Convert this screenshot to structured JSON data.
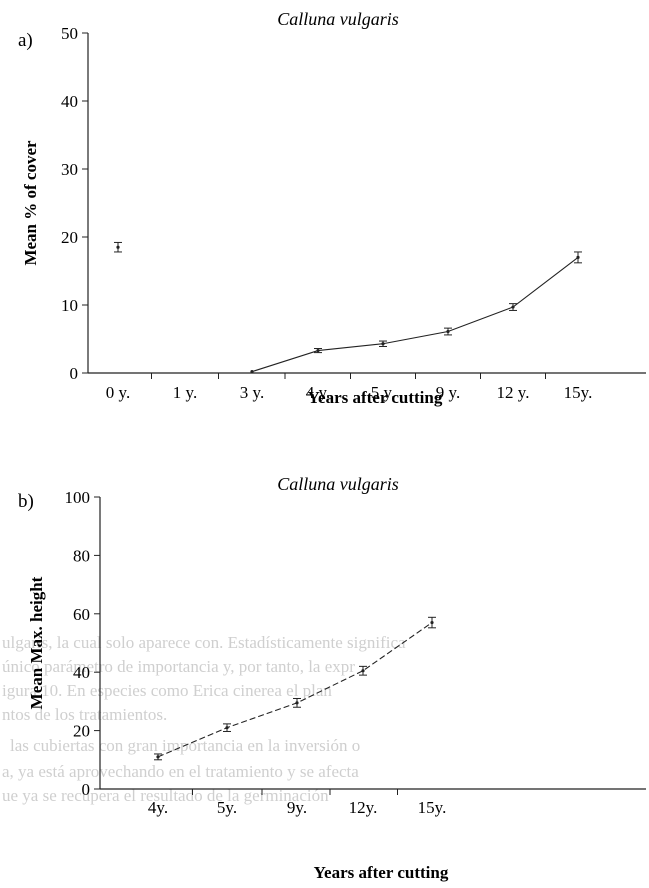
{
  "chart_data": [
    {
      "panel_label": "a)",
      "type": "line",
      "title": "Calluna vulgaris",
      "xlabel": "Years after cutting",
      "ylabel": "Mean % of cover",
      "ylim": [
        0,
        50
      ],
      "y_ticks": [
        "0",
        "10",
        "20",
        "30",
        "40",
        "50"
      ],
      "categories": [
        "0 y.",
        "1 y.",
        "3 y.",
        "4 y.",
        "5 y.",
        "9 y.",
        "12 y.",
        "15y."
      ],
      "values": [
        18.5,
        null,
        0.2,
        3.3,
        4.3,
        6.1,
        9.7,
        17.0
      ],
      "error": [
        0.7,
        null,
        null,
        0.3,
        0.4,
        0.5,
        0.5,
        0.8
      ],
      "line_from_index": 2,
      "line_style": "solid",
      "grid": false
    },
    {
      "panel_label": "b)",
      "type": "line",
      "title": "Calluna vulgaris",
      "xlabel": "Years after cutting",
      "ylabel": "Mean Max. height",
      "ylim": [
        0,
        100
      ],
      "y_ticks": [
        "0",
        "20",
        "40",
        "60",
        "80",
        "100"
      ],
      "categories": [
        "4y.",
        "5y.",
        "9y.",
        "12y.",
        "15y."
      ],
      "values": [
        11,
        21,
        29.5,
        40.5,
        57
      ],
      "error": [
        1.0,
        1.3,
        1.5,
        1.5,
        1.8
      ],
      "line_style": "dashed",
      "grid": false
    }
  ],
  "background_text": [
    "ulgaris, la cual solo aparece con. Estadísticamente significa",
    "único parámetro de importancia y, por tanto, la expr",
    "igura 10. En especies como Erica cinerea el plan",
    "ntos de los tratamientos.",
    "las cubiertas con gran importancia en la inversión o",
    "a, ya está aprovechando en el tratamiento y se afecta",
    "ue ya se recupera el resultado de la germinación"
  ]
}
